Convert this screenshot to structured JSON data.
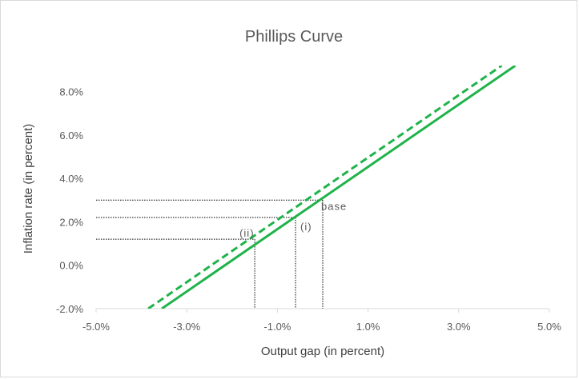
{
  "chart_data": {
    "type": "line",
    "title": "Phillips Curve",
    "xlabel": "Output gap (in percent)",
    "ylabel": "Inflation rate (in percent)",
    "xlim": [
      -5.0,
      5.0
    ],
    "ylim": [
      -2.0,
      9.2
    ],
    "x_ticks": [
      -5.0,
      -3.0,
      -1.0,
      1.0,
      3.0,
      5.0
    ],
    "x_tick_labels": [
      "-5.0%",
      "-3.0%",
      "-1.0%",
      "1.0%",
      "3.0%",
      "5.0%"
    ],
    "y_ticks": [
      -2.0,
      0.0,
      2.0,
      4.0,
      6.0,
      8.0
    ],
    "y_tick_labels": [
      "-2.0%",
      "0.0%",
      "2.0%",
      "4.0%",
      "6.0%",
      "8.0%"
    ],
    "grid": false,
    "legend": "none",
    "series": [
      {
        "style": "solid",
        "color": "#1fb34a",
        "x": [
          -3.55,
          4.25
        ],
        "y": [
          -2.0,
          9.2
        ]
      },
      {
        "style": "dashed",
        "color": "#1fb34a",
        "x": [
          -3.85,
          3.95
        ],
        "y": [
          -2.0,
          9.2
        ]
      }
    ],
    "reference_points": [
      {
        "label": "base",
        "x": 0.0,
        "y": 3.0
      },
      {
        "label": "(i)",
        "x": -0.6,
        "y": 2.2
      },
      {
        "label": "(ii)",
        "x": -1.5,
        "y": 1.2
      }
    ]
  },
  "colors": {
    "axis": "#d9d9d9",
    "guide": "#000000",
    "line": "#1fb34a"
  }
}
